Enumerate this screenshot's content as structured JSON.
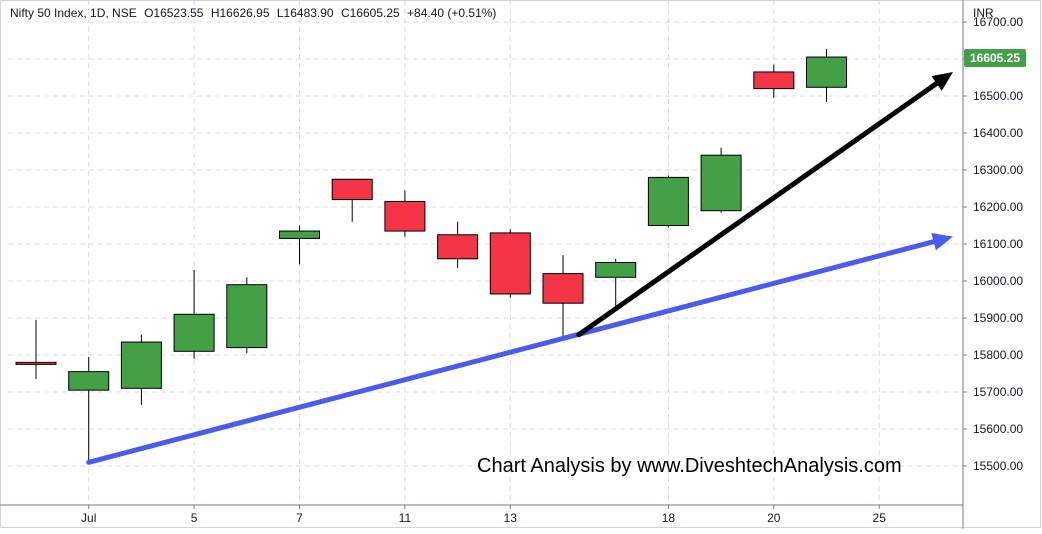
{
  "legend": {
    "symbol": "Nifty 50 Index, 1D, NSE",
    "open": "O16523.55",
    "high": "H16626.95",
    "low": "L16483.90",
    "close": "C16605.25",
    "change": "+84.40 (+0.51%)"
  },
  "currency_label": "INR",
  "last_price_label": "16605.25",
  "watermark": "Chart Analysis by www.DiveshtechAnalysis.com",
  "colors": {
    "up": "#43a047",
    "down": "#f23645",
    "trendline_blue": "#4a5cf0",
    "trendline_black": "#000000",
    "grid": "#d9dce3",
    "axis": "#787b86"
  },
  "chart_data": {
    "type": "candlestick",
    "ylim": [
      15440,
      16760
    ],
    "y_ticks": [
      15500,
      15600,
      15700,
      15800,
      15900,
      16000,
      16100,
      16200,
      16300,
      16400,
      16500,
      16600,
      16700
    ],
    "y_tick_labels": [
      "15500.00",
      "15600.00",
      "15700.00",
      "15800.00",
      "15900.00",
      "16000.00",
      "16100.00",
      "16200.00",
      "16300.00",
      "16400.00",
      "16500.00",
      "",
      "16700.00"
    ],
    "x_ticks": [
      {
        "index": 1,
        "label": "Jul"
      },
      {
        "index": 3,
        "label": "5"
      },
      {
        "index": 5,
        "label": "7"
      },
      {
        "index": 7,
        "label": "11"
      },
      {
        "index": 9,
        "label": "13"
      },
      {
        "index": 12,
        "label": "18"
      },
      {
        "index": 14,
        "label": "20"
      },
      {
        "index": 16,
        "label": "25"
      }
    ],
    "candles": [
      {
        "index": 0,
        "open": 15780,
        "high": 15895,
        "low": 15735,
        "close": 15775
      },
      {
        "index": 1,
        "open": 15705,
        "high": 15795,
        "low": 15510,
        "close": 15755
      },
      {
        "index": 2,
        "open": 15710,
        "high": 15855,
        "low": 15665,
        "close": 15835
      },
      {
        "index": 3,
        "open": 15810,
        "high": 16030,
        "low": 15790,
        "close": 15910
      },
      {
        "index": 4,
        "open": 15820,
        "high": 16010,
        "low": 15805,
        "close": 15990
      },
      {
        "index": 5,
        "open": 16115,
        "high": 16150,
        "low": 16045,
        "close": 16135
      },
      {
        "index": 6,
        "open": 16275,
        "high": 16275,
        "low": 16160,
        "close": 16220
      },
      {
        "index": 7,
        "open": 16215,
        "high": 16245,
        "low": 16120,
        "close": 16135
      },
      {
        "index": 8,
        "open": 16125,
        "high": 16160,
        "low": 16035,
        "close": 16060
      },
      {
        "index": 9,
        "open": 16130,
        "high": 16140,
        "low": 15955,
        "close": 15965
      },
      {
        "index": 10,
        "open": 16020,
        "high": 16070,
        "low": 15850,
        "close": 15940
      },
      {
        "index": 11,
        "open": 16010,
        "high": 16060,
        "low": 15925,
        "close": 16050
      },
      {
        "index": 12,
        "open": 16150,
        "high": 16285,
        "low": 16145,
        "close": 16280
      },
      {
        "index": 13,
        "open": 16190,
        "high": 16360,
        "low": 16185,
        "close": 16340
      },
      {
        "index": 14,
        "open": 16565,
        "high": 16585,
        "low": 16495,
        "close": 16520
      },
      {
        "index": 15,
        "open": 16523.55,
        "high": 16626.95,
        "low": 16483.9,
        "close": 16605.25
      }
    ],
    "trendlines": [
      {
        "name": "blue-trendline",
        "color": "#4a5cf0",
        "from": {
          "index": 1,
          "value": 15510
        },
        "to": {
          "index": 17.4,
          "value": 16120
        }
      },
      {
        "name": "black-trendline",
        "color": "#000000",
        "from": {
          "index": 10.3,
          "value": 15855
        },
        "to": {
          "index": 17.4,
          "value": 16565
        }
      }
    ],
    "grid": true
  }
}
